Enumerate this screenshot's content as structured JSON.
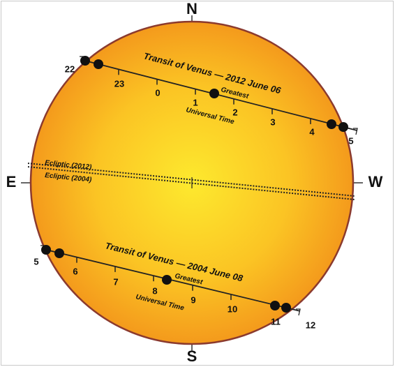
{
  "compass": {
    "north": "N",
    "south": "S",
    "east": "E",
    "west": "W"
  },
  "transit_2012": {
    "title": "Transit of Venus — 2012 June 06",
    "greatest": "Greatest",
    "time_axis": "Universal Time",
    "hours": [
      22,
      23,
      0,
      1,
      2,
      3,
      4,
      5
    ]
  },
  "ecliptic": {
    "label_2012": "Ecliptic (2012)",
    "label_2004": "Ecliptic (2004)"
  },
  "transit_2004": {
    "title": "Transit of Venus — 2004 June 08",
    "greatest": "Greatest",
    "time_axis": "Universal Time",
    "hours": [
      5,
      6,
      7,
      8,
      9,
      10,
      11,
      12
    ]
  }
}
